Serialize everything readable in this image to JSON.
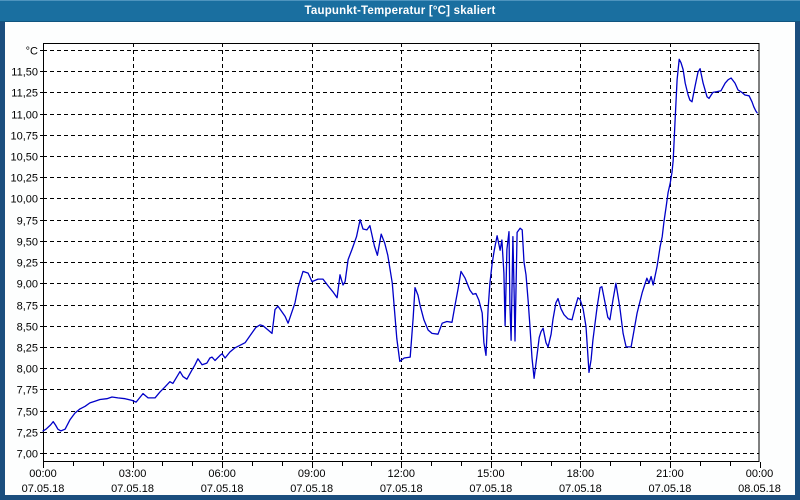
{
  "window": {
    "title": "Taupunkt-Temperatur [°C] skaliert"
  },
  "colors": {
    "titlebar": "#1A6FA0",
    "frame": "#1B4E7E",
    "content_bg": "#FDFEFE",
    "plot_bg": "#FFFFFF",
    "line": "#0000C8",
    "grid": "#000000",
    "text": "#000000"
  },
  "chart_data": {
    "type": "line",
    "title": "Taupunkt-Temperatur [°C] skaliert",
    "ylabel": "°C",
    "ylim": [
      7.0,
      11.75
    ],
    "y_tick_step": 0.25,
    "grid": "dashed",
    "legend_position": "none",
    "xlim_hours": [
      0,
      24
    ],
    "x_minor_step_hours": 1,
    "y_ticks": [
      {
        "value": 7.0,
        "label": "7,00"
      },
      {
        "value": 7.25,
        "label": "7,25"
      },
      {
        "value": 7.5,
        "label": "7,50"
      },
      {
        "value": 7.75,
        "label": "7,75"
      },
      {
        "value": 8.0,
        "label": "8,00"
      },
      {
        "value": 8.25,
        "label": "8,25"
      },
      {
        "value": 8.5,
        "label": "8,50"
      },
      {
        "value": 8.75,
        "label": "8,75"
      },
      {
        "value": 9.0,
        "label": "9,00"
      },
      {
        "value": 9.25,
        "label": "9,25"
      },
      {
        "value": 9.5,
        "label": "9,50"
      },
      {
        "value": 9.75,
        "label": "9,75"
      },
      {
        "value": 10.0,
        "label": "10,00"
      },
      {
        "value": 10.25,
        "label": "10,25"
      },
      {
        "value": 10.5,
        "label": "10,50"
      },
      {
        "value": 10.75,
        "label": "10,75"
      },
      {
        "value": 11.0,
        "label": "11,00"
      },
      {
        "value": 11.25,
        "label": "11,25"
      },
      {
        "value": 11.5,
        "label": "11,50"
      },
      {
        "value": 11.75,
        "label": "°C"
      }
    ],
    "x_ticks": [
      {
        "hour": 0,
        "time": "00:00",
        "date": "07.05.18"
      },
      {
        "hour": 3,
        "time": "03:00",
        "date": "07.05.18"
      },
      {
        "hour": 6,
        "time": "06:00",
        "date": "07.05.18"
      },
      {
        "hour": 9,
        "time": "09:00",
        "date": "07.05.18"
      },
      {
        "hour": 12,
        "time": "12:00",
        "date": "07.05.18"
      },
      {
        "hour": 15,
        "time": "15:00",
        "date": "07.05.18"
      },
      {
        "hour": 18,
        "time": "18:00",
        "date": "07.05.18"
      },
      {
        "hour": 21,
        "time": "21:00",
        "date": "07.05.18"
      },
      {
        "hour": 24,
        "time": "00:00",
        "date": "08.05.18"
      }
    ],
    "series": [
      {
        "name": "Taupunkt-Temperatur",
        "color": "#0000C8",
        "points": [
          [
            0.0,
            7.26
          ],
          [
            0.1,
            7.28
          ],
          [
            0.25,
            7.33
          ],
          [
            0.34,
            7.37
          ],
          [
            0.42,
            7.33
          ],
          [
            0.5,
            7.28
          ],
          [
            0.6,
            7.26
          ],
          [
            0.74,
            7.28
          ],
          [
            0.9,
            7.39
          ],
          [
            1.07,
            7.47
          ],
          [
            1.24,
            7.52
          ],
          [
            1.41,
            7.55
          ],
          [
            1.57,
            7.59
          ],
          [
            1.74,
            7.61
          ],
          [
            1.91,
            7.63
          ],
          [
            2.14,
            7.64
          ],
          [
            2.31,
            7.66
          ],
          [
            2.51,
            7.65
          ],
          [
            2.75,
            7.64
          ],
          [
            2.98,
            7.62
          ],
          [
            3.12,
            7.6
          ],
          [
            3.35,
            7.7
          ],
          [
            3.52,
            7.65
          ],
          [
            3.75,
            7.65
          ],
          [
            3.92,
            7.72
          ],
          [
            4.09,
            7.78
          ],
          [
            4.25,
            7.84
          ],
          [
            4.35,
            7.82
          ],
          [
            4.49,
            7.9
          ],
          [
            4.59,
            7.96
          ],
          [
            4.69,
            7.9
          ],
          [
            4.82,
            7.87
          ],
          [
            4.99,
            7.98
          ],
          [
            5.09,
            8.04
          ],
          [
            5.19,
            8.11
          ],
          [
            5.33,
            8.04
          ],
          [
            5.49,
            8.06
          ],
          [
            5.59,
            8.12
          ],
          [
            5.66,
            8.13
          ],
          [
            5.76,
            8.09
          ],
          [
            5.93,
            8.15
          ],
          [
            6.0,
            8.17
          ],
          [
            6.1,
            8.12
          ],
          [
            6.26,
            8.19
          ],
          [
            6.43,
            8.24
          ],
          [
            6.6,
            8.27
          ],
          [
            6.77,
            8.3
          ],
          [
            6.93,
            8.38
          ],
          [
            7.13,
            8.48
          ],
          [
            7.27,
            8.51
          ],
          [
            7.37,
            8.5
          ],
          [
            7.54,
            8.45
          ],
          [
            7.67,
            8.41
          ],
          [
            7.77,
            8.69
          ],
          [
            7.87,
            8.73
          ],
          [
            8.11,
            8.61
          ],
          [
            8.21,
            8.53
          ],
          [
            8.44,
            8.77
          ],
          [
            8.54,
            8.95
          ],
          [
            8.71,
            9.14
          ],
          [
            8.88,
            9.12
          ],
          [
            9.01,
            9.02
          ],
          [
            9.21,
            9.05
          ],
          [
            9.38,
            9.05
          ],
          [
            9.55,
            8.97
          ],
          [
            9.71,
            8.9
          ],
          [
            9.85,
            8.83
          ],
          [
            9.95,
            9.1
          ],
          [
            10.05,
            8.98
          ],
          [
            10.12,
            9.02
          ],
          [
            10.22,
            9.28
          ],
          [
            10.35,
            9.4
          ],
          [
            10.5,
            9.55
          ],
          [
            10.62,
            9.75
          ],
          [
            10.72,
            9.64
          ],
          [
            10.85,
            9.63
          ],
          [
            10.95,
            9.68
          ],
          [
            11.1,
            9.44
          ],
          [
            11.2,
            9.33
          ],
          [
            11.33,
            9.58
          ],
          [
            11.45,
            9.47
          ],
          [
            11.55,
            9.33
          ],
          [
            11.7,
            9.0
          ],
          [
            11.85,
            8.35
          ],
          [
            11.95,
            8.08
          ],
          [
            12.1,
            8.12
          ],
          [
            12.3,
            8.13
          ],
          [
            12.4,
            8.6
          ],
          [
            12.46,
            8.95
          ],
          [
            12.56,
            8.86
          ],
          [
            12.63,
            8.74
          ],
          [
            12.76,
            8.57
          ],
          [
            12.9,
            8.45
          ],
          [
            13.03,
            8.41
          ],
          [
            13.23,
            8.4
          ],
          [
            13.37,
            8.53
          ],
          [
            13.53,
            8.55
          ],
          [
            13.7,
            8.54
          ],
          [
            13.8,
            8.74
          ],
          [
            13.9,
            8.93
          ],
          [
            14.0,
            9.14
          ],
          [
            14.14,
            9.06
          ],
          [
            14.3,
            8.92
          ],
          [
            14.4,
            8.87
          ],
          [
            14.5,
            8.88
          ],
          [
            14.6,
            8.8
          ],
          [
            14.71,
            8.65
          ],
          [
            14.77,
            8.3
          ],
          [
            14.84,
            8.15
          ],
          [
            14.91,
            8.7
          ],
          [
            14.97,
            9.0
          ],
          [
            15.04,
            9.22
          ],
          [
            15.11,
            9.38
          ],
          [
            15.21,
            9.56
          ],
          [
            15.31,
            9.39
          ],
          [
            15.37,
            9.51
          ],
          [
            15.44,
            9.12
          ],
          [
            15.48,
            8.5
          ],
          [
            15.54,
            9.4
          ],
          [
            15.61,
            9.61
          ],
          [
            15.64,
            8.75
          ],
          [
            15.68,
            8.33
          ],
          [
            15.74,
            9.55
          ],
          [
            15.78,
            8.9
          ],
          [
            15.81,
            8.32
          ],
          [
            15.88,
            9.6
          ],
          [
            15.98,
            9.65
          ],
          [
            16.05,
            9.63
          ],
          [
            16.11,
            9.25
          ],
          [
            16.18,
            9.1
          ],
          [
            16.25,
            8.8
          ],
          [
            16.31,
            8.5
          ],
          [
            16.38,
            8.12
          ],
          [
            16.45,
            7.88
          ],
          [
            16.55,
            8.16
          ],
          [
            16.62,
            8.36
          ],
          [
            16.68,
            8.43
          ],
          [
            16.75,
            8.47
          ],
          [
            16.85,
            8.3
          ],
          [
            16.92,
            8.25
          ],
          [
            17.02,
            8.4
          ],
          [
            17.08,
            8.57
          ],
          [
            17.18,
            8.77
          ],
          [
            17.25,
            8.82
          ],
          [
            17.35,
            8.7
          ],
          [
            17.45,
            8.63
          ],
          [
            17.59,
            8.58
          ],
          [
            17.72,
            8.57
          ],
          [
            17.82,
            8.71
          ],
          [
            17.92,
            8.83
          ],
          [
            17.99,
            8.81
          ],
          [
            18.09,
            8.7
          ],
          [
            18.19,
            8.49
          ],
          [
            18.29,
            7.95
          ],
          [
            18.36,
            8.1
          ],
          [
            18.42,
            8.33
          ],
          [
            18.56,
            8.72
          ],
          [
            18.66,
            8.95
          ],
          [
            18.72,
            8.96
          ],
          [
            18.82,
            8.78
          ],
          [
            18.92,
            8.6
          ],
          [
            18.99,
            8.57
          ],
          [
            19.09,
            8.8
          ],
          [
            19.19,
            9.0
          ],
          [
            19.32,
            8.72
          ],
          [
            19.43,
            8.41
          ],
          [
            19.53,
            8.25
          ],
          [
            19.7,
            8.25
          ],
          [
            19.8,
            8.45
          ],
          [
            19.9,
            8.65
          ],
          [
            20.07,
            8.89
          ],
          [
            20.17,
            9.0
          ],
          [
            20.23,
            9.06
          ],
          [
            20.3,
            9.0
          ],
          [
            20.37,
            9.08
          ],
          [
            20.44,
            8.98
          ],
          [
            20.57,
            9.2
          ],
          [
            20.67,
            9.43
          ],
          [
            20.74,
            9.55
          ],
          [
            20.8,
            9.73
          ],
          [
            20.87,
            9.9
          ],
          [
            20.94,
            10.07
          ],
          [
            21.01,
            10.18
          ],
          [
            21.07,
            10.31
          ],
          [
            21.11,
            10.45
          ],
          [
            21.17,
            10.9
          ],
          [
            21.24,
            11.4
          ],
          [
            21.31,
            11.64
          ],
          [
            21.37,
            11.6
          ],
          [
            21.44,
            11.52
          ],
          [
            21.51,
            11.36
          ],
          [
            21.61,
            11.22
          ],
          [
            21.67,
            11.16
          ],
          [
            21.74,
            11.14
          ],
          [
            21.84,
            11.32
          ],
          [
            21.94,
            11.49
          ],
          [
            22.01,
            11.53
          ],
          [
            22.11,
            11.36
          ],
          [
            22.24,
            11.2
          ],
          [
            22.31,
            11.18
          ],
          [
            22.44,
            11.25
          ],
          [
            22.58,
            11.26
          ],
          [
            22.71,
            11.27
          ],
          [
            22.85,
            11.36
          ],
          [
            22.95,
            11.4
          ],
          [
            23.05,
            11.42
          ],
          [
            23.18,
            11.36
          ],
          [
            23.28,
            11.28
          ],
          [
            23.41,
            11.25
          ],
          [
            23.51,
            11.22
          ],
          [
            23.65,
            11.21
          ],
          [
            23.75,
            11.14
          ],
          [
            23.81,
            11.08
          ],
          [
            23.88,
            11.03
          ],
          [
            23.92,
            11.01
          ]
        ]
      }
    ]
  }
}
